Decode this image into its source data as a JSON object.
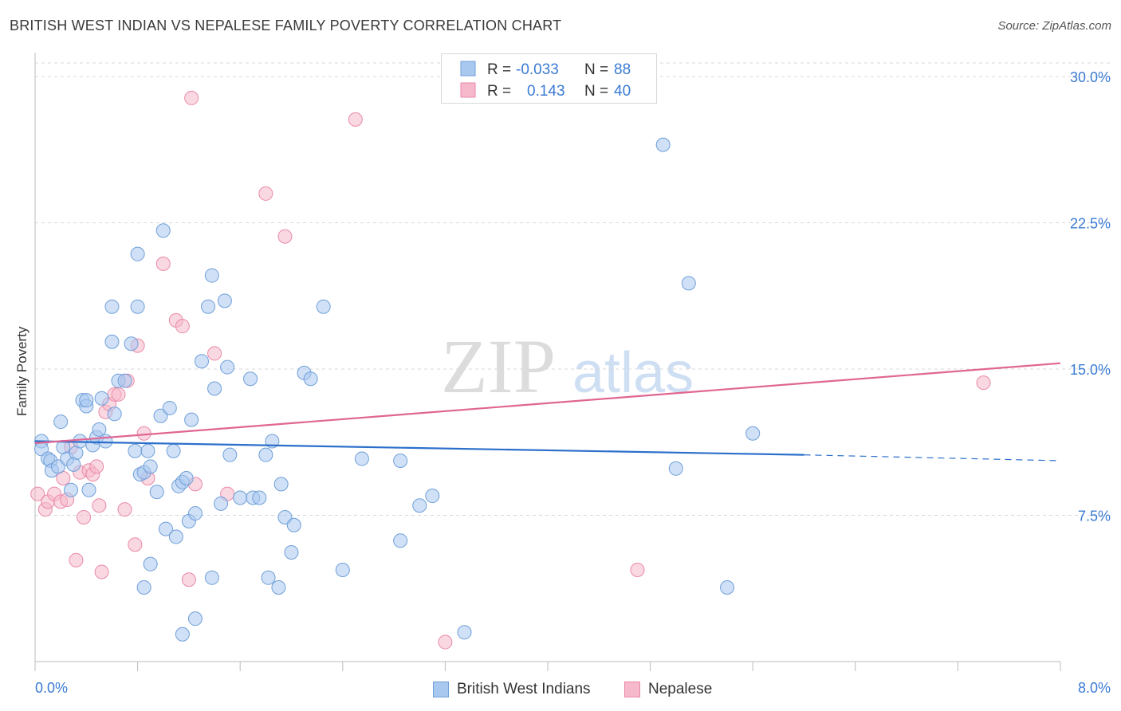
{
  "title": "BRITISH WEST INDIAN VS NEPALESE FAMILY POVERTY CORRELATION CHART",
  "source": "Source: ZipAtlas.com",
  "watermark": {
    "zip": "ZIP",
    "atlas": "atlas"
  },
  "colors": {
    "blue_fill": "#a9c8f0",
    "blue_stroke": "#6f9fd8",
    "blue_line": "#2c6fcb",
    "pink_fill": "#f6b8cb",
    "pink_stroke": "#e98aa8",
    "pink_line": "#e06692",
    "axis_label": "#3b7bd4",
    "grid": "#d8d8d8"
  },
  "legend_box": {
    "rows": [
      {
        "r_label": "R =",
        "r_value": "-0.033",
        "n_label": "N =",
        "n_value": "88",
        "series": "blue"
      },
      {
        "r_label": "R =",
        "r_value": "0.143",
        "n_label": "N =",
        "n_value": "40",
        "series": "pink"
      }
    ]
  },
  "chart_data": {
    "type": "scatter",
    "ylabel": "Family Poverty",
    "x_tick_labels": [
      "0.0%",
      "8.0%"
    ],
    "y_tick_labels": [
      "7.5%",
      "15.0%",
      "22.5%",
      "30.0%"
    ],
    "xlim": [
      0,
      8
    ],
    "ylim": [
      0,
      30.9
    ],
    "y_ticks": [
      7.5,
      15.0,
      22.5,
      30.0
    ],
    "grid": "horizontal dashed",
    "legend_position": "top-center",
    "series": [
      {
        "name": "British West Indians",
        "color": "blue",
        "trend": {
          "x": [
            0.0,
            6.0
          ],
          "y": [
            11.3,
            10.6
          ],
          "dashed_x": [
            6.0,
            8.0
          ],
          "dashed_y": [
            10.6,
            10.3
          ]
        },
        "points": [
          [
            0.05,
            11.3
          ],
          [
            0.05,
            10.9
          ],
          [
            0.1,
            10.4
          ],
          [
            0.12,
            10.3
          ],
          [
            0.13,
            9.8
          ],
          [
            0.18,
            10.0
          ],
          [
            0.2,
            12.3
          ],
          [
            0.22,
            11.0
          ],
          [
            0.25,
            10.4
          ],
          [
            0.28,
            8.8
          ],
          [
            0.32,
            10.7
          ],
          [
            0.35,
            11.3
          ],
          [
            0.37,
            13.4
          ],
          [
            0.4,
            13.1
          ],
          [
            0.42,
            8.8
          ],
          [
            0.45,
            11.1
          ],
          [
            0.48,
            11.5
          ],
          [
            0.5,
            11.9
          ],
          [
            0.52,
            13.5
          ],
          [
            0.55,
            11.3
          ],
          [
            0.6,
            16.4
          ],
          [
            0.62,
            12.7
          ],
          [
            0.65,
            14.4
          ],
          [
            0.7,
            14.4
          ],
          [
            0.75,
            16.3
          ],
          [
            0.78,
            10.8
          ],
          [
            0.82,
            9.6
          ],
          [
            0.85,
            9.7
          ],
          [
            0.88,
            10.8
          ],
          [
            0.9,
            10.0
          ],
          [
            0.95,
            8.7
          ],
          [
            0.98,
            12.6
          ],
          [
            1.02,
            6.8
          ],
          [
            1.05,
            13.0
          ],
          [
            1.08,
            10.8
          ],
          [
            1.12,
            9.0
          ],
          [
            1.15,
            9.2
          ],
          [
            1.18,
            9.4
          ],
          [
            1.2,
            7.2
          ],
          [
            1.22,
            12.4
          ],
          [
            1.25,
            7.6
          ],
          [
            1.3,
            15.4
          ],
          [
            1.35,
            18.2
          ],
          [
            1.38,
            19.8
          ],
          [
            1.4,
            14.0
          ],
          [
            1.45,
            8.1
          ],
          [
            1.48,
            18.5
          ],
          [
            1.52,
            10.6
          ],
          [
            1.6,
            8.4
          ],
          [
            1.68,
            14.5
          ],
          [
            1.7,
            8.4
          ],
          [
            1.75,
            8.4
          ],
          [
            1.8,
            10.6
          ],
          [
            1.82,
            4.3
          ],
          [
            1.85,
            11.3
          ],
          [
            1.92,
            9.1
          ],
          [
            1.95,
            7.4
          ],
          [
            2.0,
            5.6
          ],
          [
            2.02,
            7.0
          ],
          [
            2.1,
            14.8
          ],
          [
            2.15,
            14.5
          ],
          [
            2.25,
            18.2
          ],
          [
            2.4,
            4.7
          ],
          [
            2.55,
            10.4
          ],
          [
            2.85,
            10.3
          ],
          [
            3.0,
            8.0
          ],
          [
            3.1,
            8.5
          ],
          [
            3.35,
            1.5
          ],
          [
            4.9,
            26.5
          ],
          [
            5.0,
            9.9
          ],
          [
            5.1,
            19.4
          ],
          [
            5.4,
            3.8
          ],
          [
            5.6,
            11.7
          ],
          [
            0.6,
            18.2
          ],
          [
            0.8,
            18.2
          ],
          [
            0.8,
            20.9
          ],
          [
            1.0,
            22.1
          ],
          [
            0.85,
            3.8
          ],
          [
            0.9,
            5.0
          ],
          [
            1.1,
            6.4
          ],
          [
            1.15,
            1.4
          ],
          [
            1.25,
            2.2
          ],
          [
            1.38,
            4.3
          ],
          [
            1.9,
            3.8
          ],
          [
            2.85,
            6.2
          ],
          [
            1.5,
            15.1
          ],
          [
            0.4,
            13.4
          ],
          [
            0.3,
            10.1
          ]
        ]
      },
      {
        "name": "Nepalese",
        "color": "pink",
        "trend": {
          "x": [
            0.0,
            8.0
          ],
          "y": [
            11.2,
            15.3
          ]
        },
        "points": [
          [
            0.02,
            8.6
          ],
          [
            0.08,
            7.8
          ],
          [
            0.1,
            8.2
          ],
          [
            0.15,
            8.6
          ],
          [
            0.2,
            8.2
          ],
          [
            0.22,
            9.4
          ],
          [
            0.25,
            8.3
          ],
          [
            0.28,
            11.0
          ],
          [
            0.32,
            5.2
          ],
          [
            0.35,
            9.7
          ],
          [
            0.38,
            7.4
          ],
          [
            0.42,
            9.8
          ],
          [
            0.45,
            9.6
          ],
          [
            0.48,
            10.0
          ],
          [
            0.5,
            8.0
          ],
          [
            0.52,
            4.6
          ],
          [
            0.55,
            12.8
          ],
          [
            0.58,
            13.2
          ],
          [
            0.62,
            13.7
          ],
          [
            0.65,
            13.7
          ],
          [
            0.7,
            7.8
          ],
          [
            0.72,
            14.4
          ],
          [
            0.78,
            6.0
          ],
          [
            0.8,
            16.2
          ],
          [
            0.85,
            11.7
          ],
          [
            0.88,
            9.4
          ],
          [
            1.0,
            20.4
          ],
          [
            1.1,
            17.5
          ],
          [
            1.15,
            17.2
          ],
          [
            1.2,
            4.2
          ],
          [
            1.22,
            28.9
          ],
          [
            1.25,
            9.1
          ],
          [
            1.4,
            15.8
          ],
          [
            1.5,
            8.6
          ],
          [
            1.8,
            24.0
          ],
          [
            1.95,
            21.8
          ],
          [
            2.5,
            27.8
          ],
          [
            3.2,
            1.0
          ],
          [
            4.7,
            4.7
          ],
          [
            7.4,
            14.3
          ]
        ]
      }
    ]
  },
  "bottom_legend": [
    {
      "label": "British West Indians",
      "series": "blue"
    },
    {
      "label": "Nepalese",
      "series": "pink"
    }
  ]
}
